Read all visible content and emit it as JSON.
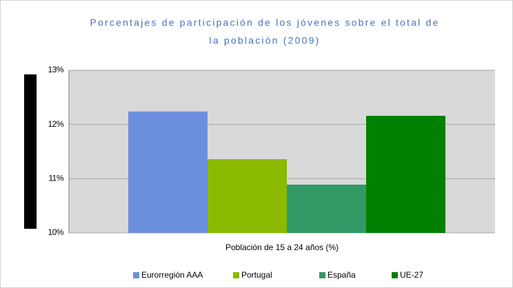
{
  "chart_data": {
    "type": "bar",
    "title": [
      "Porcentajes de participación de los jóvenes sobre el total de",
      "la población (2009)"
    ],
    "categories": [
      "Población de 15 a 24 años (%)"
    ],
    "series": [
      {
        "name": "Eurorregión AAA",
        "color": "#6b8fdc",
        "values": [
          12.24
        ]
      },
      {
        "name": "Portugal",
        "color": "#8bba00",
        "values": [
          11.36
        ]
      },
      {
        "name": "España",
        "color": "#339966",
        "values": [
          10.89
        ]
      },
      {
        "name": "UE-27",
        "color": "#008000",
        "values": [
          12.16
        ]
      }
    ],
    "ylim": [
      10,
      13
    ],
    "yticks": [
      {
        "value": 10,
        "label": "10%"
      },
      {
        "value": 11,
        "label": "11%"
      },
      {
        "value": 12,
        "label": "12%"
      },
      {
        "value": 13,
        "label": "13%"
      }
    ],
    "grid": true,
    "legend": "bottom"
  }
}
